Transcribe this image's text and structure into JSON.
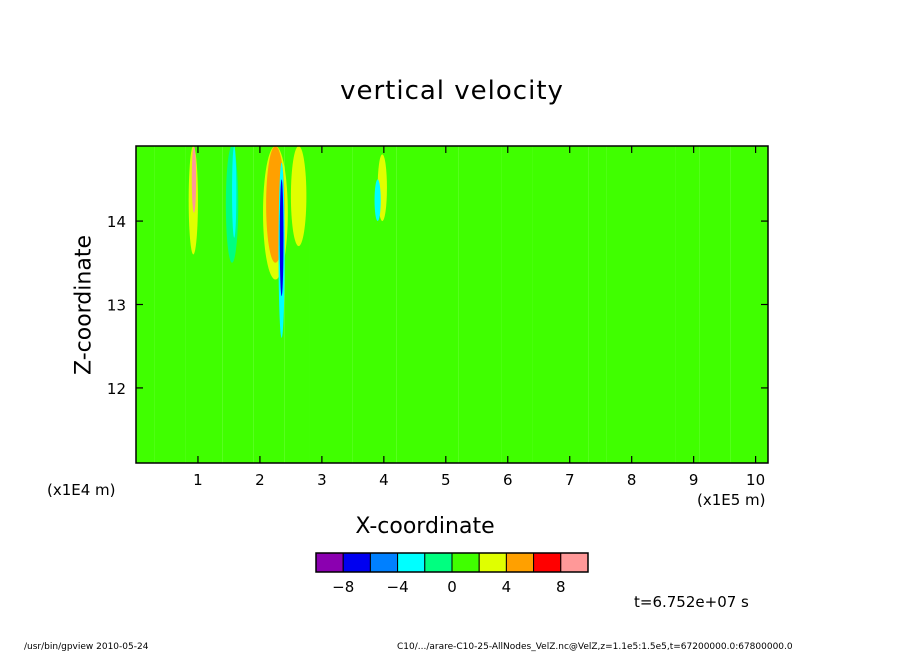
{
  "chart_data": {
    "type": "heatmap",
    "title": "vertical velocity",
    "xlabel": "X-coordinate",
    "ylabel": "Z-coordinate",
    "x_unit": "(x1E5 m)",
    "z_unit": "(x1E4 m)",
    "xlim": [
      0,
      10.2
    ],
    "ylim": [
      11.1,
      14.9
    ],
    "x_ticks": [
      1,
      2,
      3,
      4,
      5,
      6,
      7,
      8,
      9,
      10
    ],
    "y_ticks": [
      12,
      13,
      14
    ],
    "colorbar": {
      "levels": [
        -10,
        -8,
        -6,
        -4,
        -2,
        0,
        2,
        4,
        6,
        8,
        10
      ],
      "tick_labels": [
        {
          "level": -8,
          "label": "−8"
        },
        {
          "level": -4,
          "label": "−4"
        },
        {
          "level": 0,
          "label": "0"
        },
        {
          "level": 4,
          "label": "4"
        },
        {
          "level": 8,
          "label": "8"
        }
      ],
      "colors": [
        "#8b00b0",
        "#0000f0",
        "#0080ff",
        "#00ffff",
        "#00ff80",
        "#40ff00",
        "#e0ff00",
        "#ffa000",
        "#ff0000",
        "#ff9898"
      ]
    },
    "background_bands": [
      {
        "x0": 0.0,
        "x1": 0.3,
        "value": 0
      },
      {
        "x0": 0.3,
        "x1": 0.8,
        "value": 1
      },
      {
        "x0": 0.8,
        "x1": 1.4,
        "value": 0
      },
      {
        "x0": 1.4,
        "x1": 1.9,
        "value": 1
      },
      {
        "x0": 1.9,
        "x1": 2.4,
        "value": 0
      },
      {
        "x0": 2.4,
        "x1": 2.8,
        "value": 1
      },
      {
        "x0": 2.8,
        "x1": 3.5,
        "value": 0
      },
      {
        "x0": 3.5,
        "x1": 4.2,
        "value": 1
      },
      {
        "x0": 4.2,
        "x1": 5.2,
        "value": 0
      },
      {
        "x0": 5.2,
        "x1": 5.9,
        "value": 1
      },
      {
        "x0": 5.9,
        "x1": 6.4,
        "value": 0
      },
      {
        "x0": 6.4,
        "x1": 7.3,
        "value": 1
      },
      {
        "x0": 7.3,
        "x1": 7.6,
        "value": 0
      },
      {
        "x0": 7.6,
        "x1": 8.7,
        "value": 1
      },
      {
        "x0": 8.7,
        "x1": 9.1,
        "value": 0
      },
      {
        "x0": 9.1,
        "x1": 9.6,
        "value": 1
      },
      {
        "x0": 9.6,
        "x1": 10.2,
        "value": 0
      }
    ],
    "features": [
      {
        "x0": 0.85,
        "x1": 1.0,
        "z0": 13.6,
        "z1": 14.9,
        "value": 3
      },
      {
        "x0": 0.9,
        "x1": 0.97,
        "z0": 14.1,
        "z1": 14.9,
        "value": 8
      },
      {
        "x0": 1.45,
        "x1": 1.65,
        "z0": 13.5,
        "z1": 14.9,
        "value": -2
      },
      {
        "x0": 1.55,
        "x1": 1.62,
        "z0": 13.8,
        "z1": 14.9,
        "value": -4
      },
      {
        "x0": 2.05,
        "x1": 2.45,
        "z0": 13.3,
        "z1": 14.9,
        "value": 3
      },
      {
        "x0": 2.1,
        "x1": 2.4,
        "z0": 13.5,
        "z1": 14.9,
        "value": 5
      },
      {
        "x0": 2.3,
        "x1": 2.4,
        "z0": 12.6,
        "z1": 14.7,
        "value": -4
      },
      {
        "x0": 2.32,
        "x1": 2.38,
        "z0": 13.1,
        "z1": 14.5,
        "value": -8
      },
      {
        "x0": 2.5,
        "x1": 2.75,
        "z0": 13.7,
        "z1": 14.9,
        "value": 3
      },
      {
        "x0": 3.9,
        "x1": 4.05,
        "z0": 14.0,
        "z1": 14.8,
        "value": 3
      },
      {
        "x0": 3.85,
        "x1": 3.95,
        "z0": 14.0,
        "z1": 14.5,
        "value": -3
      }
    ]
  },
  "time_label": "t=6.752e+07 s",
  "footer_left": "/usr/bin/gpview  2010-05-24",
  "footer_right": "C10/.../arare-C10-25-AllNodes_VelZ.nc@VelZ,z=1.1e5:1.5e5,t=67200000.0:67800000.0"
}
